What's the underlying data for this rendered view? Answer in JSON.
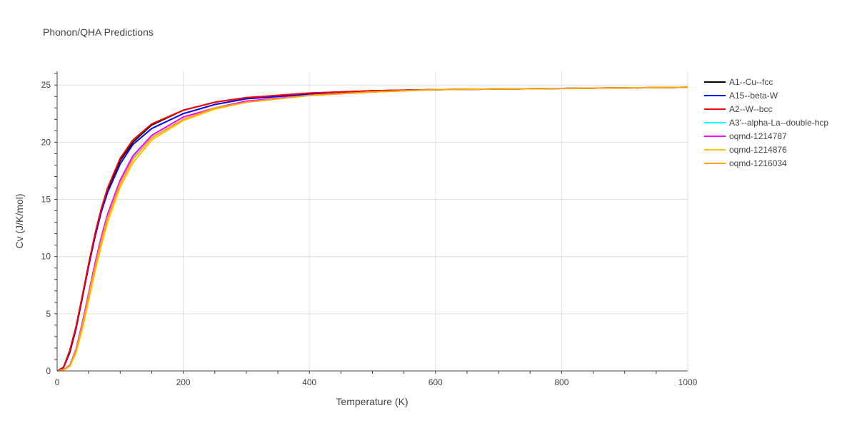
{
  "chart_data": {
    "type": "line",
    "title": "Phonon/QHA Predictions",
    "xlabel": "Temperature (K)",
    "ylabel": "Cv (J/K/mol)",
    "xlim": [
      0,
      1000
    ],
    "ylim": [
      0,
      26.2
    ],
    "x_ticks": [
      0,
      200,
      400,
      600,
      800,
      1000
    ],
    "y_ticks": [
      0,
      5,
      10,
      15,
      20,
      25
    ],
    "grid": true,
    "legend_position": "right",
    "series": [
      {
        "name": "A1--Cu--fcc",
        "color": "#000000",
        "debye_T": 340,
        "x": [
          0,
          10,
          20,
          30,
          40,
          50,
          60,
          70,
          80,
          100,
          120,
          150,
          200,
          250,
          300,
          400,
          500,
          600,
          800,
          1000
        ],
        "y": [
          0,
          0.28,
          1.6,
          3.7,
          6.4,
          9.2,
          11.8,
          14.0,
          15.8,
          18.4,
          20.0,
          21.5,
          22.8,
          23.5,
          23.9,
          24.3,
          24.5,
          24.6,
          24.7,
          24.8
        ]
      },
      {
        "name": "A15--beta-W",
        "color": "#0000ff",
        "debye_T": 330,
        "x": [
          0,
          10,
          20,
          30,
          40,
          50,
          60,
          70,
          80,
          100,
          120,
          150,
          200,
          250,
          300,
          400,
          500,
          600,
          800,
          1000
        ],
        "y": [
          0,
          0.3,
          1.7,
          3.8,
          6.5,
          9.2,
          11.7,
          13.9,
          15.6,
          18.1,
          19.8,
          21.2,
          22.5,
          23.3,
          23.8,
          24.2,
          24.5,
          24.6,
          24.7,
          24.8
        ]
      },
      {
        "name": "A2--W--bcc",
        "color": "#ff0000",
        "debye_T": 320,
        "x": [
          0,
          10,
          20,
          30,
          40,
          50,
          60,
          70,
          80,
          100,
          120,
          150,
          200,
          250,
          300,
          400,
          500,
          600,
          800,
          1000
        ],
        "y": [
          0,
          0.32,
          1.8,
          3.9,
          6.6,
          9.4,
          12.0,
          14.2,
          16.0,
          18.6,
          20.2,
          21.6,
          22.8,
          23.5,
          23.9,
          24.3,
          24.5,
          24.6,
          24.7,
          24.8
        ]
      },
      {
        "name": "A3'--alpha-La--double-hcp",
        "color": "#00ffff",
        "debye_T": 360,
        "x": [
          0,
          10,
          20,
          30,
          40,
          50,
          60,
          70,
          80,
          100,
          120,
          150,
          200,
          250,
          300,
          400,
          500,
          600,
          800,
          1000
        ],
        "y": [
          0,
          0.1,
          0.5,
          1.9,
          4.2,
          6.8,
          9.3,
          11.6,
          13.5,
          16.5,
          18.6,
          20.4,
          22.0,
          22.9,
          23.5,
          24.1,
          24.4,
          24.6,
          24.7,
          24.8
        ]
      },
      {
        "name": "oqmd-1214787",
        "color": "#ff00ff",
        "debye_T": 365,
        "x": [
          0,
          10,
          20,
          30,
          40,
          50,
          60,
          70,
          80,
          100,
          120,
          150,
          200,
          250,
          300,
          400,
          500,
          600,
          800,
          1000
        ],
        "y": [
          0,
          0.1,
          0.5,
          1.9,
          4.2,
          6.8,
          9.4,
          11.7,
          13.7,
          16.7,
          18.8,
          20.6,
          22.2,
          23.0,
          23.6,
          24.1,
          24.4,
          24.6,
          24.7,
          24.8
        ]
      },
      {
        "name": "oqmd-1214876",
        "color": "#ffc107",
        "debye_T": 375,
        "x": [
          0,
          10,
          20,
          30,
          40,
          50,
          60,
          70,
          80,
          100,
          120,
          150,
          200,
          250,
          300,
          400,
          500,
          600,
          800,
          1000
        ],
        "y": [
          0,
          0.08,
          0.4,
          1.6,
          3.7,
          6.2,
          8.7,
          11.0,
          13.0,
          16.1,
          18.2,
          20.2,
          21.9,
          22.9,
          23.5,
          24.1,
          24.4,
          24.6,
          24.7,
          24.8
        ]
      },
      {
        "name": "oqmd-1216034",
        "color": "#ffa500",
        "debye_T": 370,
        "x": [
          0,
          10,
          20,
          30,
          40,
          50,
          60,
          70,
          80,
          100,
          120,
          150,
          200,
          250,
          300,
          400,
          500,
          600,
          800,
          1000
        ],
        "y": [
          0,
          0.1,
          0.45,
          1.8,
          4.0,
          6.6,
          9.1,
          11.4,
          13.4,
          16.4,
          18.5,
          20.4,
          22.0,
          23.0,
          23.5,
          24.1,
          24.4,
          24.6,
          24.7,
          24.8
        ]
      }
    ]
  }
}
